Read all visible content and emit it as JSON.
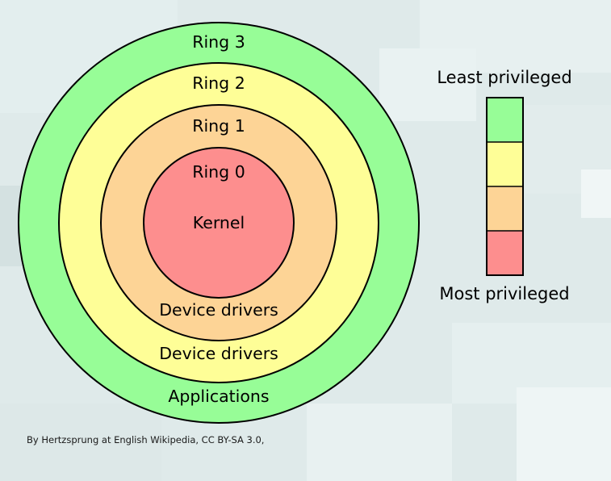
{
  "diagram": {
    "rings": [
      {
        "name": "Ring 3",
        "content": "Applications",
        "color": "#97fd97"
      },
      {
        "name": "Ring 2",
        "content": "Device drivers",
        "color": "#fefe97"
      },
      {
        "name": "Ring 1",
        "content": "Device drivers",
        "color": "#fdd496"
      },
      {
        "name": "Ring 0",
        "content": "Kernel",
        "color": "#fd8e8e"
      }
    ],
    "legend": {
      "top_label": "Least privileged",
      "bottom_label": "Most privileged",
      "colors": [
        "#97fd97",
        "#fefe97",
        "#fdd496",
        "#fd8e8e"
      ]
    }
  },
  "caption": "By Hertzsprung at English Wikipedia, CC BY-SA 3.0,"
}
